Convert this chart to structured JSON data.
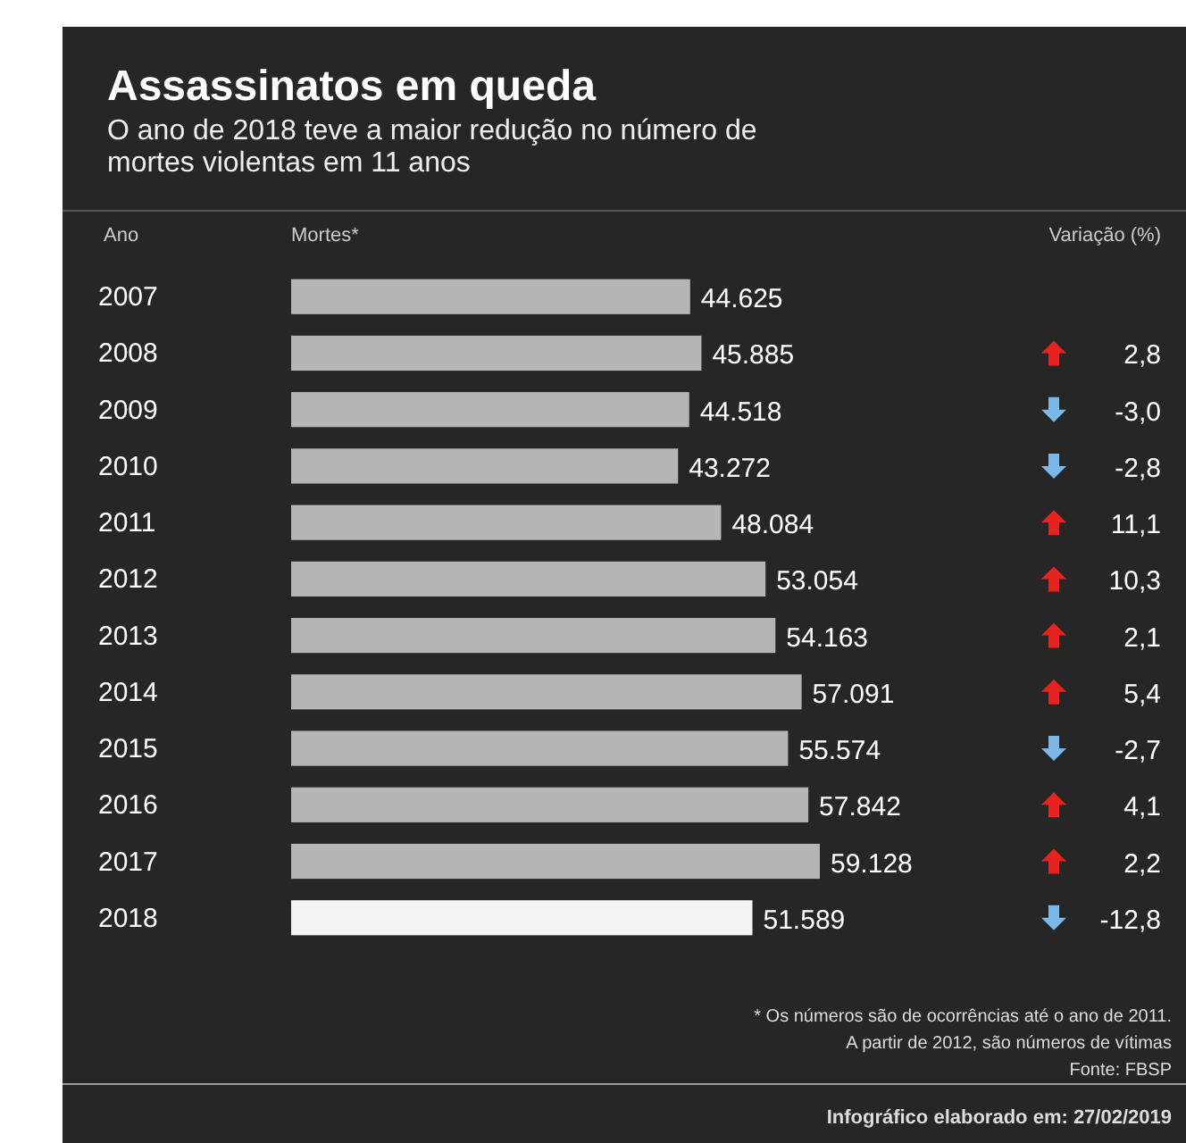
{
  "chart_data": {
    "type": "bar",
    "orientation": "horizontal",
    "title": "Assassinatos em queda",
    "subtitle": "O ano de 2018 teve a maior redução no número de mortes violentas em 11 anos",
    "ylabel": "Ano",
    "xlabel": "Mortes*",
    "categories": [
      "2007",
      "2008",
      "2009",
      "2010",
      "2011",
      "2012",
      "2013",
      "2014",
      "2015",
      "2016",
      "2017",
      "2018"
    ],
    "values": [
      44625,
      45885,
      44518,
      43272,
      48084,
      53054,
      54163,
      57091,
      55574,
      57842,
      59128,
      51589
    ],
    "value_labels": [
      "44.625",
      "45.885",
      "44.518",
      "43.272",
      "48.084",
      "53.054",
      "54.163",
      "57.091",
      "55.574",
      "57.842",
      "59.128",
      "51.589"
    ],
    "colors": [
      "#b5b5b5",
      "#b5b5b5",
      "#b5b5b5",
      "#b5b5b5",
      "#b5b5b5",
      "#b5b5b5",
      "#b5b5b5",
      "#b5b5b5",
      "#b5b5b5",
      "#b5b5b5",
      "#b5b5b5",
      "#f4f4f4"
    ],
    "annotations": [
      "Variação (%)",
      "2,8",
      "-3,0",
      "-2,8",
      "11,1",
      "10,3",
      "2,1",
      "5,4",
      "-2,7",
      "4,1",
      "2,2",
      "-12,8",
      "* Os números são de ocorrências até o ano de 2011.",
      "A partir de 2012, são números de vítimas",
      "Fonte: FBSP",
      "Infográfico elaborado em: 27/02/2019"
    ]
  }
}
